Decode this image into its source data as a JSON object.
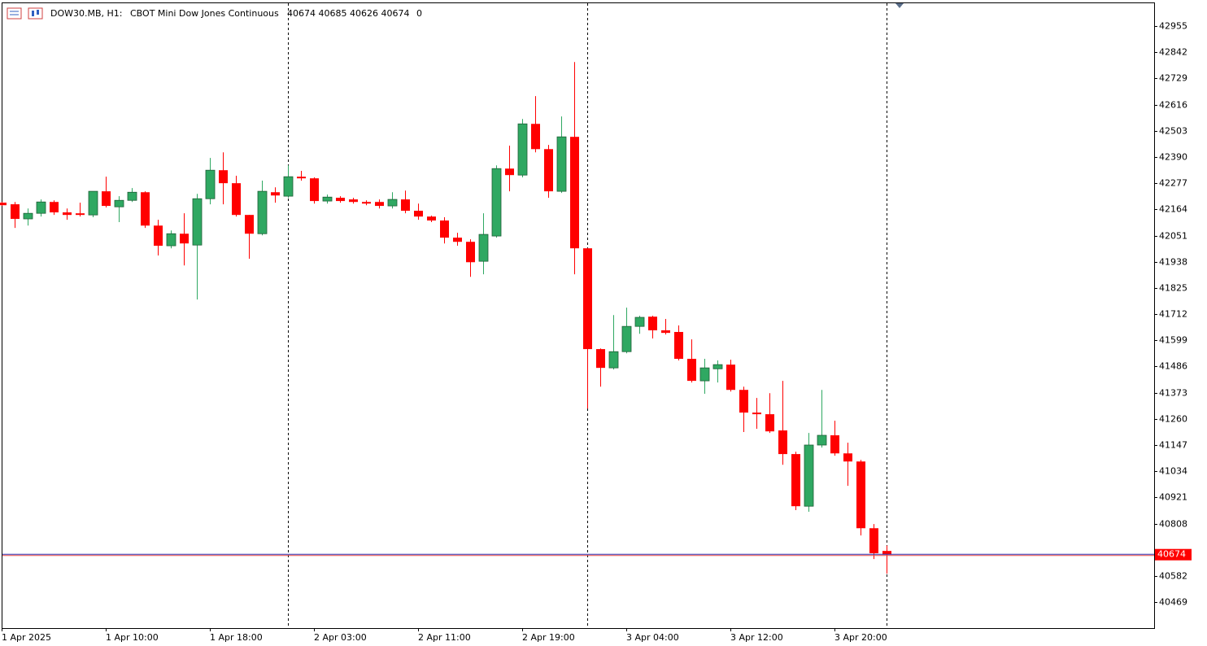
{
  "chart_data": {
    "type": "candlestick",
    "title": "DOW30.MB, H1:",
    "subtitle": "CBOT Mini Dow Jones Continuous",
    "quote": "40674 40685 40626 40674",
    "volume": 0,
    "categories": [
      "1 Apr 2025",
      null,
      null,
      null,
      null,
      null,
      null,
      null,
      "1 Apr 10:00",
      null,
      null,
      null,
      null,
      null,
      null,
      null,
      "1 Apr 18:00",
      null,
      null,
      null,
      null,
      null,
      null,
      null,
      "2 Apr 03:00",
      null,
      null,
      null,
      null,
      null,
      null,
      null,
      "2 Apr 11:00",
      null,
      null,
      null,
      null,
      null,
      null,
      null,
      "2 Apr 19:00",
      null,
      null,
      null,
      null,
      null,
      null,
      null,
      "3 Apr 04:00",
      null,
      null,
      null,
      null,
      null,
      null,
      null,
      "3 Apr 12:00",
      null,
      null,
      null,
      null,
      null,
      null,
      null,
      "3 Apr 20:00",
      null,
      null,
      null,
      null
    ],
    "open": [
      42193,
      42186,
      42123,
      42147,
      42196,
      42151,
      42147,
      42140,
      42242,
      42175,
      42203,
      42238,
      42094,
      42007,
      42059,
      42010,
      42210,
      42333,
      42277,
      42140,
      42059,
      42238,
      42221,
      42305,
      42298,
      42200,
      42214,
      42207,
      42196,
      42196,
      42179,
      42207,
      42158,
      42133,
      42116,
      42042,
      42024,
      41940,
      42049,
      42340,
      42312,
      42533,
      42424,
      42242,
      42477,
      41996,
      41561,
      41480,
      41550,
      41659,
      41701,
      41642,
      41635,
      41519,
      41424,
      41476,
      41494,
      41385,
      41287,
      41280,
      41210,
      41108,
      40883,
      41147,
      41189,
      41111,
      41076,
      40788,
      40690
    ],
    "high": [
      42196,
      42196,
      42168,
      42207,
      42203,
      42168,
      42193,
      42242,
      42305,
      42221,
      42256,
      42242,
      42119,
      42073,
      42147,
      42231,
      42386,
      42410,
      42309,
      42140,
      42288,
      42259,
      42354,
      42330,
      42302,
      42228,
      42221,
      42214,
      42203,
      42207,
      42238,
      42245,
      42189,
      42137,
      42130,
      42063,
      42035,
      42147,
      42354,
      42439,
      42554,
      42653,
      42442,
      42565,
      42800,
      41996,
      41564,
      41708,
      41740,
      41705,
      41705,
      41691,
      41663,
      41603,
      41519,
      41512,
      41515,
      41399,
      41350,
      41371,
      41424,
      41118,
      41199,
      41385,
      41252,
      41157,
      41083,
      40806,
      40713
    ],
    "low": [
      42179,
      42084,
      42094,
      42133,
      42140,
      42119,
      42133,
      42130,
      42172,
      42109,
      42196,
      42084,
      41965,
      41996,
      41922,
      41775,
      42186,
      42186,
      42133,
      41951,
      42052,
      42193,
      42214,
      42288,
      42189,
      42189,
      42193,
      42189,
      42182,
      42168,
      42168,
      42147,
      42119,
      42109,
      42017,
      42007,
      41873,
      41884,
      42042,
      42242,
      42302,
      42410,
      42214,
      42235,
      41884,
      41304,
      41399,
      41473,
      41543,
      41627,
      41607,
      41624,
      41512,
      41417,
      41368,
      41417,
      41378,
      41203,
      41217,
      41199,
      41062,
      40866,
      40859,
      41136,
      41101,
      40971,
      40757,
      40655,
      40592
    ],
    "close": [
      42182,
      42123,
      42147,
      42196,
      42151,
      42140,
      42140,
      42242,
      42179,
      42203,
      42238,
      42094,
      42007,
      42059,
      42017,
      42210,
      42333,
      42277,
      42140,
      42059,
      42242,
      42224,
      42305,
      42298,
      42200,
      42217,
      42200,
      42196,
      42189,
      42179,
      42207,
      42158,
      42133,
      42116,
      42042,
      42024,
      41936,
      42056,
      42340,
      42312,
      42533,
      42424,
      42242,
      42477,
      41996,
      41561,
      41480,
      41550,
      41659,
      41698,
      41642,
      41631,
      41519,
      41424,
      41480,
      41494,
      41385,
      41287,
      41280,
      41206,
      41108,
      40883,
      41147,
      41189,
      41111,
      41076,
      40788,
      40680,
      40674
    ],
    "up_color": "#2fa862",
    "down_color": "#ff0000",
    "current_price": 40674,
    "ylim": [
      40357,
      43057
    ],
    "yticks": [
      42955,
      42842,
      42729,
      42616,
      42503,
      42390,
      42277,
      42164,
      42051,
      41938,
      41825,
      41712,
      41599,
      41486,
      41373,
      41260,
      41147,
      41034,
      40921,
      40808,
      40582,
      40469
    ]
  }
}
